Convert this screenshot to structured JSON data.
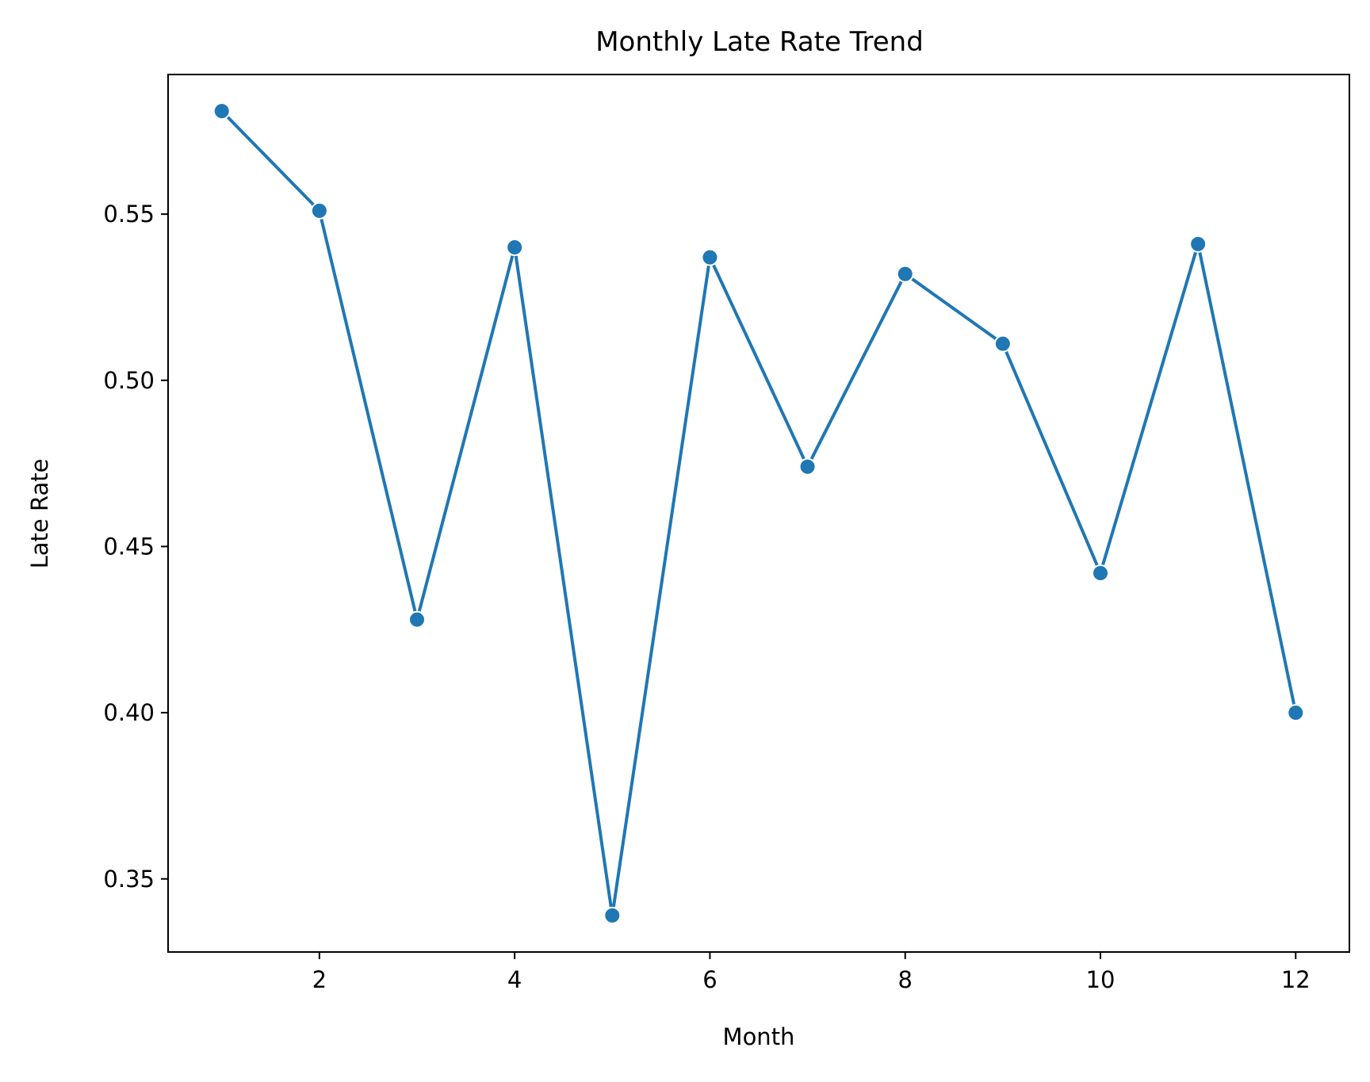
{
  "chart_data": {
    "type": "line",
    "title": "Monthly Late Rate Trend",
    "xlabel": "Month",
    "ylabel": "Late Rate",
    "x": [
      1,
      2,
      3,
      4,
      5,
      6,
      7,
      8,
      9,
      10,
      11,
      12
    ],
    "series": [
      {
        "values": [
          0.581,
          0.551,
          0.428,
          0.54,
          0.339,
          0.537,
          0.474,
          0.532,
          0.511,
          0.442,
          0.541,
          0.4
        ]
      }
    ],
    "xlim": [
      0.45,
      12.55
    ],
    "ylim": [
      0.328,
      0.592
    ],
    "xticks": [
      2,
      4,
      6,
      8,
      10,
      12
    ],
    "xtick_labels": [
      "2",
      "4",
      "6",
      "8",
      "10",
      "12"
    ],
    "yticks": [
      0.35,
      0.4,
      0.45,
      0.5,
      0.55
    ],
    "ytick_labels": [
      "0.35",
      "0.40",
      "0.45",
      "0.50",
      "0.55"
    ],
    "grid": false,
    "legend": "none",
    "line_color": "#1f77b4",
    "marker_color": "#1f77b4",
    "marker_edge_color": "#ffffff"
  }
}
